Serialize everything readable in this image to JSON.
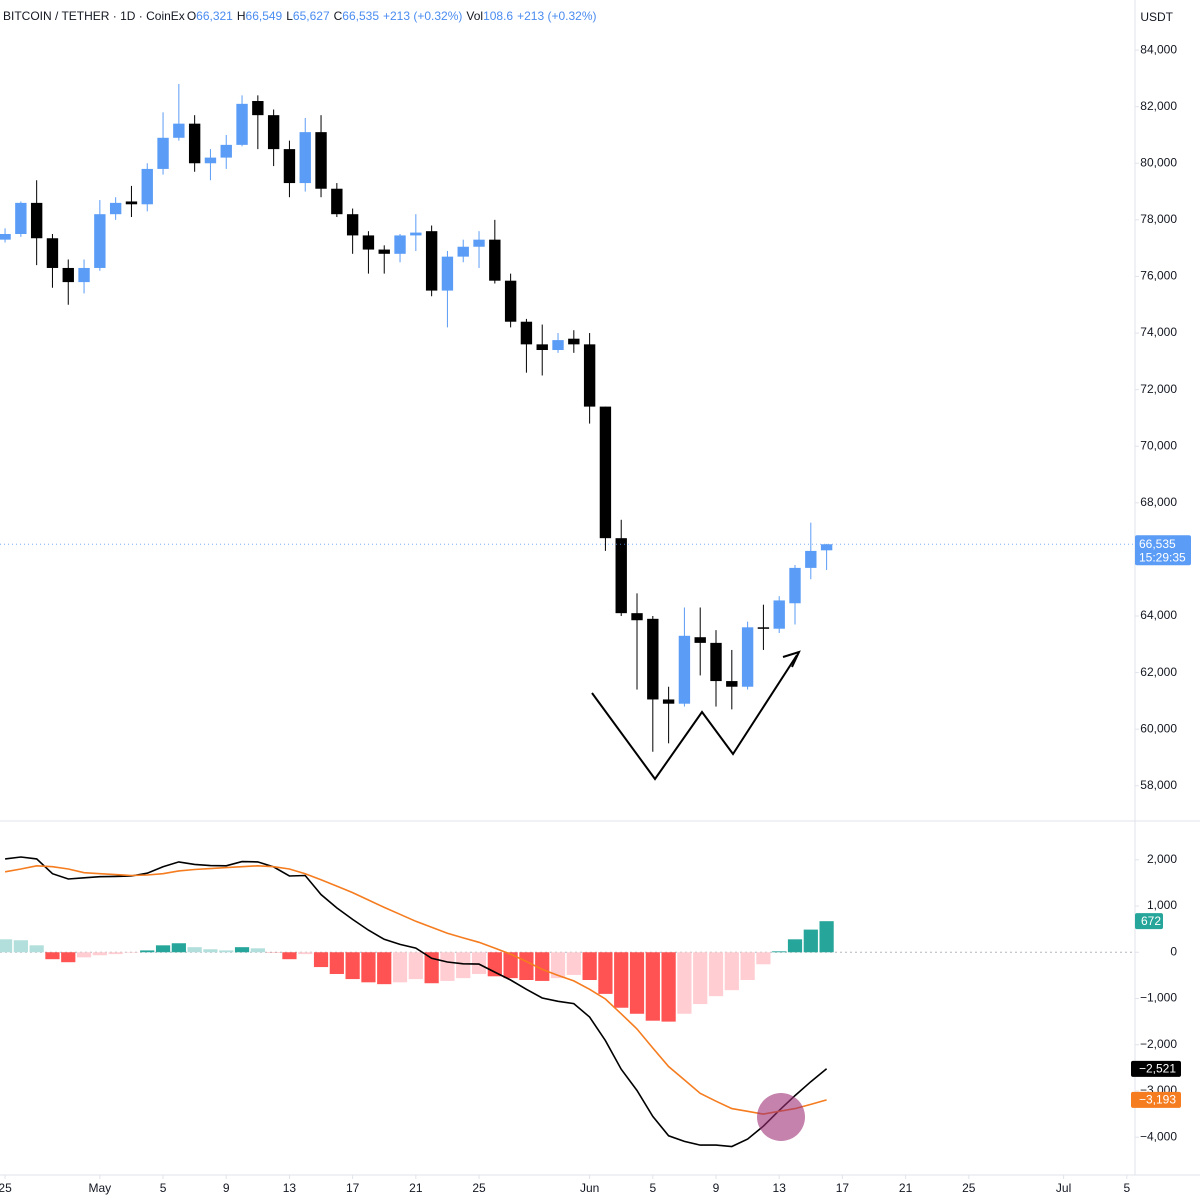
{
  "chart_data": [
    {
      "type": "candlestick",
      "header": {
        "title": "BITCOIN / TETHER · 1D · CoinEx",
        "ohlc": [
          {
            "key": "O",
            "text": "66,321"
          },
          {
            "key": "H",
            "text": "66,549"
          },
          {
            "key": "L",
            "text": "65,627"
          },
          {
            "key": "C",
            "text": "66,535"
          }
        ],
        "change": "+213 (+0.32%)",
        "volume": {
          "key": "Vol",
          "text": "108.6"
        },
        "volume_change": "+213 (+0.32%)"
      },
      "currency": "USDT",
      "x": [
        0,
        1,
        2,
        3,
        4,
        5,
        6,
        7,
        8,
        9,
        10,
        11,
        12,
        13,
        14,
        15,
        16,
        17,
        18,
        19,
        20,
        21,
        22,
        23,
        24,
        25,
        26,
        27,
        28,
        29,
        30,
        31,
        32,
        33,
        34,
        35,
        36,
        37,
        38,
        39,
        40,
        41,
        42,
        43,
        44,
        45,
        46,
        47,
        48,
        49,
        50,
        51,
        52
      ],
      "open": [
        77300,
        77500,
        78600,
        77350,
        76300,
        75800,
        76300,
        78200,
        78650,
        78550,
        79800,
        80900,
        81400,
        80000,
        80200,
        80650,
        82200,
        81700,
        80500,
        79300,
        81100,
        79100,
        78200,
        77450,
        76950,
        76800,
        77450,
        77600,
        75500,
        76700,
        77050,
        77300,
        75850,
        74400,
        73600,
        73400,
        73800,
        73600,
        71400,
        66750,
        64100,
        63900,
        61050,
        60900,
        63250,
        63050,
        61700,
        61500,
        63600,
        63550,
        64450,
        65700,
        66321
      ],
      "high": [
        77700,
        78650,
        79400,
        77500,
        76600,
        76600,
        78700,
        78800,
        79200,
        80000,
        81800,
        82800,
        81700,
        80500,
        81000,
        82400,
        82400,
        81900,
        80800,
        81600,
        81700,
        79300,
        78400,
        77600,
        77100,
        77500,
        78200,
        77800,
        76900,
        77300,
        77600,
        78000,
        76100,
        74500,
        74300,
        74000,
        74100,
        74000,
        71400,
        67400,
        64800,
        64000,
        61500,
        64300,
        64300,
        63500,
        62800,
        63800,
        64400,
        64700,
        65800,
        67300,
        66549
      ],
      "low": [
        77200,
        77400,
        76400,
        75600,
        75000,
        75400,
        76200,
        78000,
        78100,
        78300,
        79600,
        80800,
        79700,
        79400,
        79800,
        80600,
        80500,
        79900,
        78800,
        79000,
        78800,
        78100,
        76800,
        76100,
        76100,
        76500,
        76900,
        75300,
        74200,
        76500,
        76300,
        75750,
        74200,
        72600,
        72500,
        73300,
        73300,
        70800,
        66300,
        64000,
        61400,
        59200,
        59500,
        60800,
        61900,
        60800,
        60700,
        61400,
        62800,
        63400,
        63700,
        65300,
        65627
      ],
      "close": [
        77500,
        78600,
        77350,
        76300,
        75800,
        76300,
        78200,
        78600,
        78550,
        79800,
        80900,
        81400,
        80000,
        80200,
        80650,
        82100,
        81700,
        80500,
        79300,
        81100,
        79100,
        78200,
        77450,
        76950,
        76800,
        77450,
        77550,
        75500,
        76700,
        77050,
        77300,
        75850,
        74400,
        73600,
        73400,
        73750,
        73600,
        71400,
        66750,
        64100,
        63850,
        61050,
        60900,
        63300,
        63050,
        61700,
        61500,
        63600,
        63550,
        64550,
        65700,
        66300,
        66535
      ],
      "up_color": "#5b9cf6",
      "down_color": "#000000",
      "last_label": "66,535",
      "countdown": "15:29:35",
      "ylim": [
        56790,
        85770
      ],
      "yticks": [
        {
          "value": 58000,
          "label": "58,000"
        },
        {
          "value": 60000,
          "label": "60,000"
        },
        {
          "value": 62000,
          "label": "62,000"
        },
        {
          "value": 64000,
          "label": "64,000"
        },
        {
          "value": 66000,
          "label": "66,000"
        },
        {
          "value": 68000,
          "label": "68,000"
        },
        {
          "value": 70000,
          "label": "70,000"
        },
        {
          "value": 72000,
          "label": "72,000"
        },
        {
          "value": 74000,
          "label": "74,000"
        },
        {
          "value": 76000,
          "label": "76,000"
        },
        {
          "value": 78000,
          "label": "78,000"
        },
        {
          "value": 80000,
          "label": "80,000"
        },
        {
          "value": 82000,
          "label": "82,000"
        },
        {
          "value": 84000,
          "label": "84,000"
        }
      ],
      "grid": false
    },
    {
      "type": "macd",
      "series": [
        {
          "type": "histogram",
          "values": [
            280,
            260,
            150,
            -150,
            -215,
            -110,
            -65,
            -40,
            -10,
            40,
            150,
            195,
            110,
            65,
            40,
            110,
            85,
            -5,
            -150,
            -40,
            -320,
            -470,
            -580,
            -650,
            -690,
            -650,
            -580,
            -670,
            -620,
            -560,
            -470,
            -520,
            -560,
            -600,
            -620,
            -560,
            -490,
            -600,
            -900,
            -1200,
            -1330,
            -1480,
            -1500,
            -1330,
            -1120,
            -950,
            -820,
            -600,
            -260,
            20,
            280,
            490,
            672
          ],
          "colors": [
            "#b2dfdb",
            "#b2dfdb",
            "#b2dfdb",
            "#ff5252",
            "#ff5252",
            "#ffcdd2",
            "#ffcdd2",
            "#ffcdd2",
            "#ffcdd2",
            "#26a69a",
            "#26a69a",
            "#26a69a",
            "#b2dfdb",
            "#b2dfdb",
            "#b2dfdb",
            "#26a69a",
            "#b2dfdb",
            "#ff5252",
            "#ff5252",
            "#ffcdd2",
            "#ff5252",
            "#ff5252",
            "#ff5252",
            "#ff5252",
            "#ff5252",
            "#ffcdd2",
            "#ffcdd2",
            "#ff5252",
            "#ffcdd2",
            "#ffcdd2",
            "#ffcdd2",
            "#ff5252",
            "#ff5252",
            "#ff5252",
            "#ff5252",
            "#ffcdd2",
            "#ffcdd2",
            "#ff5252",
            "#ff5252",
            "#ff5252",
            "#ff5252",
            "#ff5252",
            "#ff5252",
            "#ffcdd2",
            "#ffcdd2",
            "#ffcdd2",
            "#ffcdd2",
            "#ffcdd2",
            "#ffcdd2",
            "#26a69a",
            "#26a69a",
            "#26a69a",
            "#26a69a"
          ]
        },
        {
          "type": "line",
          "color": "#000000",
          "values": [
            2020,
            2060,
            2020,
            1700,
            1585,
            1610,
            1635,
            1640,
            1650,
            1710,
            1850,
            1955,
            1900,
            1875,
            1870,
            1960,
            1955,
            1845,
            1650,
            1660,
            1250,
            960,
            710,
            480,
            280,
            170,
            90,
            -130,
            -210,
            -250,
            -255,
            -430,
            -600,
            -800,
            -990,
            -1060,
            -1110,
            -1400,
            -1910,
            -2530,
            -2990,
            -3550,
            -3970,
            -4090,
            -4170,
            -4170,
            -4200,
            -4040,
            -3760,
            -3420,
            -3100,
            -2800,
            -2521
          ],
          "last_label": "−2,521"
        },
        {
          "type": "line",
          "color": "#f57c1f",
          "values": [
            1740,
            1800,
            1870,
            1850,
            1800,
            1720,
            1700,
            1680,
            1660,
            1670,
            1700,
            1760,
            1790,
            1810,
            1830,
            1850,
            1870,
            1850,
            1800,
            1700,
            1570,
            1430,
            1290,
            1130,
            970,
            820,
            670,
            540,
            410,
            310,
            215,
            90,
            -40,
            -200,
            -370,
            -500,
            -620,
            -800,
            -1010,
            -1330,
            -1660,
            -2070,
            -2470,
            -2760,
            -3050,
            -3220,
            -3380,
            -3440,
            -3500,
            -3440,
            -3380,
            -3290,
            -3193
          ],
          "last_label": "−3,193"
        }
      ],
      "ylim": [
        -4817,
        2817
      ],
      "yticks": [
        {
          "value": -4000,
          "label": "−4,000"
        },
        {
          "value": -3000,
          "label": "−3,000"
        },
        {
          "value": -2000,
          "label": "−2,000"
        },
        {
          "value": -1000,
          "label": "−1,000"
        },
        0,
        {
          "value": 1000,
          "label": "1,000"
        },
        {
          "value": 2000,
          "label": "2,000"
        }
      ],
      "xlim": [
        -0.32,
        71.52
      ],
      "xticks": [
        {
          "value": 0,
          "label": "25"
        },
        {
          "value": 6,
          "label": "May"
        },
        {
          "value": 10,
          "label": "5"
        },
        {
          "value": 14,
          "label": "9"
        },
        {
          "value": 18,
          "label": "13"
        },
        {
          "value": 22,
          "label": "17"
        },
        {
          "value": 26,
          "label": "21"
        },
        {
          "value": 30,
          "label": "25"
        },
        {
          "value": 37,
          "label": "Jun"
        },
        {
          "value": 41,
          "label": "5"
        },
        {
          "value": 45,
          "label": "9"
        },
        {
          "value": 49,
          "label": "13"
        },
        {
          "value": 53,
          "label": "17"
        },
        {
          "value": 57,
          "label": "21"
        },
        {
          "value": 61,
          "label": "25"
        },
        {
          "value": 67,
          "label": "Jul"
        },
        {
          "value": 71,
          "label": "5"
        }
      ],
      "grid": false
    }
  ]
}
